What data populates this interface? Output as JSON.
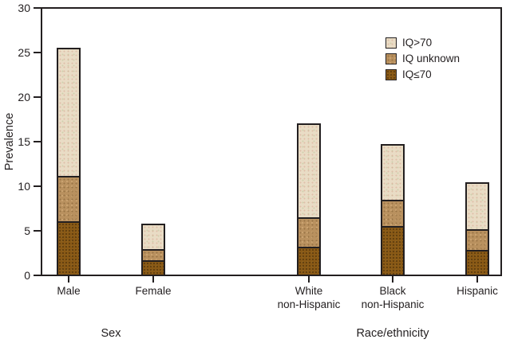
{
  "figure": {
    "background": "#ffffff",
    "frame_color": "#231f20",
    "text_color": "#231f20"
  },
  "chart_data": {
    "type": "bar",
    "subtype": "stacked",
    "title": "",
    "xlabel": "",
    "ylabel": "Prevalence",
    "ylim": [
      0,
      30
    ],
    "yticks": [
      0,
      5,
      10,
      15,
      20,
      25,
      30
    ],
    "grid": false,
    "legend_position": "top-right",
    "legend_entries": [
      "IQ>70",
      "IQ unknown",
      "IQ≤70"
    ],
    "categories": [
      "Male",
      "Female",
      "White non-Hispanic",
      "Black non-Hispanic",
      "Hispanic"
    ],
    "xtick_labels": [
      "Male",
      "Female",
      "White\nnon-Hispanic",
      "Black\nnon-Hispanic",
      "Hispanic"
    ],
    "groups": [
      {
        "label": "Sex",
        "categories": [
          "Male",
          "Female"
        ]
      },
      {
        "label": "Race/ethnicity",
        "categories": [
          "White non-Hispanic",
          "Black non-Hispanic",
          "Hispanic"
        ]
      }
    ],
    "series": [
      {
        "name": "IQ≤70",
        "key": "iq-le-70",
        "color": "#8a5a16",
        "values": [
          6.0,
          1.6,
          3.1,
          5.5,
          2.8
        ]
      },
      {
        "name": "IQ unknown",
        "key": "iq-unknown",
        "color": "#b9915f",
        "values": [
          5.1,
          1.3,
          3.3,
          3.0,
          2.3
        ]
      },
      {
        "name": "IQ>70",
        "key": "iq-gt-70",
        "color": "#e9dcc5",
        "values": [
          14.5,
          2.9,
          10.6,
          6.3,
          5.3
        ]
      }
    ],
    "stack_totals": [
      25.6,
      5.8,
      17.0,
      14.8,
      10.4
    ]
  }
}
